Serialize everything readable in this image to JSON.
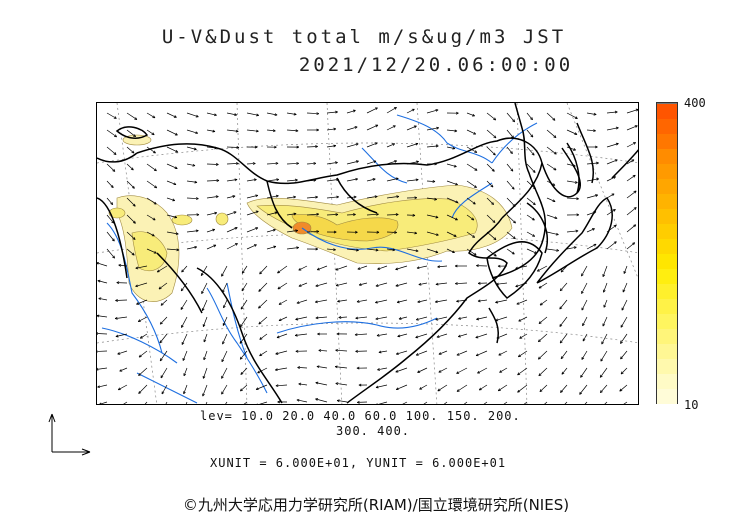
{
  "header": {
    "title_line1": "U-V&Dust total m/s&ug/m3 JST",
    "title_line2": "2021/12/20.06:00:00"
  },
  "colorbar": {
    "max_label": "400",
    "min_label": "10",
    "colors": [
      "#fffcd8",
      "#fffbc6",
      "#fff9ad",
      "#fff794",
      "#fff57a",
      "#fff55f",
      "#fff247",
      "#fff02c",
      "#ffee10",
      "#ffe600",
      "#ffd900",
      "#ffcd00",
      "#ffc000",
      "#ffb300",
      "#ffa600",
      "#ff9a00",
      "#ff8c00",
      "#ff7700",
      "#ff6600",
      "#ff5500"
    ]
  },
  "legend": {
    "levels_line1": "lev= 10.0 20.0 40.0 60.0 100. 150. 200.",
    "levels_line2": "300. 400.",
    "unit_line": "XUNIT = 6.000E+01, YUNIT = 6.000E+01"
  },
  "footer": {
    "copyright": "©九州大学応用力学研究所(RIAM)/国立環境研究所(NIES)"
  },
  "map_style": {
    "coast_color": "#000000",
    "river_color": "#1e6fe0",
    "dust_light": "#fbf2b5",
    "dust_mid": "#f8ec7a",
    "dust_high": "#f5d84a",
    "dust_peak": "#f08a2a"
  }
}
